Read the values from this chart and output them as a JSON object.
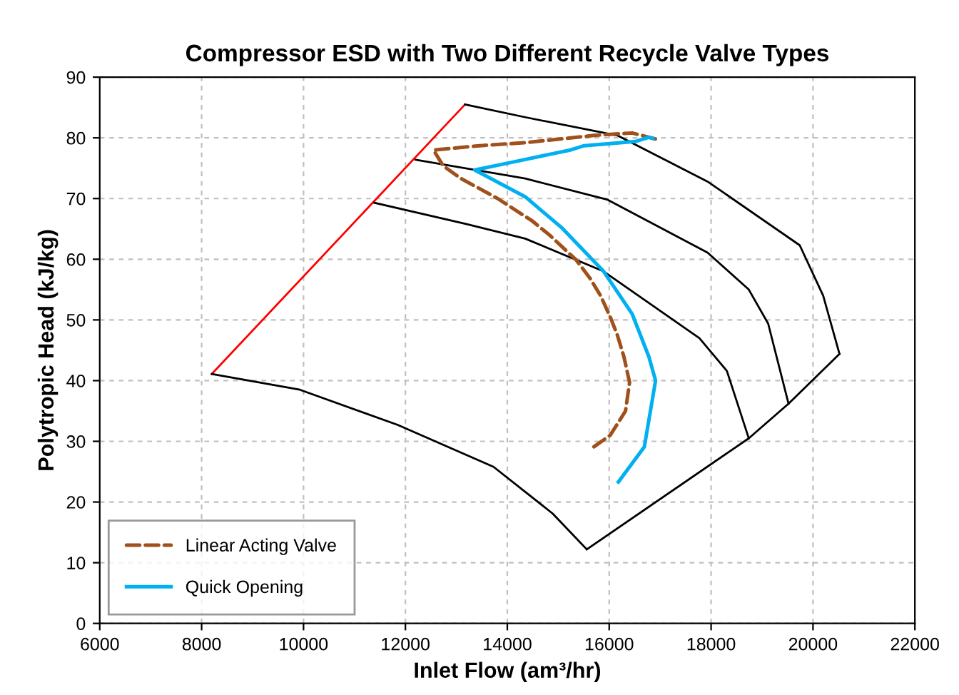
{
  "chart_data": {
    "type": "line",
    "title": "Compressor ESD with Two Different Recycle Valve Types",
    "xlabel": "Inlet Flow (am³/hr)",
    "ylabel": "Polytropic Head (kJ/kg)",
    "xlim": [
      6000,
      22000
    ],
    "ylim": [
      0,
      90
    ],
    "xticks": [
      6000,
      8000,
      10000,
      12000,
      14000,
      16000,
      18000,
      20000,
      22000
    ],
    "yticks": [
      0,
      10,
      20,
      30,
      40,
      50,
      60,
      70,
      80,
      90
    ],
    "grid": true,
    "legend": "bottom left",
    "marker": "none",
    "series": [
      {
        "color": "#ff0000",
        "line_style": "solid",
        "x": [
          8200,
          13170
        ],
        "values": [
          41.1,
          85.5
        ]
      },
      {
        "color": "#000000",
        "line_style": "solid",
        "x": [
          8200,
          9930,
          11850,
          13730,
          14890,
          15560
        ],
        "values": [
          41.1,
          38.5,
          32.7,
          25.8,
          18.1,
          12.2
        ]
      },
      {
        "color": "#000000",
        "line_style": "solid",
        "x": [
          15560,
          18740,
          19520,
          20520
        ],
        "values": [
          12.2,
          30.5,
          36.2,
          44.4
        ]
      },
      {
        "color": "#000000",
        "line_style": "solid",
        "x": [
          11390,
          13190,
          14350,
          15890,
          17770,
          18310,
          18740
        ],
        "values": [
          69.3,
          65.8,
          63.4,
          58.0,
          47.0,
          41.6,
          30.5
        ]
      },
      {
        "color": "#000000",
        "line_style": "solid",
        "x": [
          12200,
          14350,
          15970,
          17930,
          18740,
          19120,
          19520
        ],
        "values": [
          76.4,
          73.3,
          69.8,
          61.1,
          55.0,
          49.4,
          36.2
        ]
      },
      {
        "color": "#000000",
        "line_style": "solid",
        "x": [
          13170,
          14350,
          16160,
          17930,
          19740,
          20200,
          20520
        ],
        "values": [
          85.5,
          83.4,
          80.4,
          72.8,
          62.3,
          54.0,
          44.4
        ]
      },
      {
        "name": "Linear Acting Valve",
        "color": "#a0501a",
        "line_style": "dashed",
        "x": [
          15700,
          16020,
          16320,
          16400,
          16290,
          16160,
          16020,
          15830,
          15620,
          15350,
          14840,
          14490,
          13810,
          13090,
          12740,
          12550,
          13460,
          14350,
          15700,
          16450,
          16960
        ],
        "values": [
          29.1,
          31.0,
          35.0,
          39.7,
          43.9,
          47.5,
          50.5,
          54.0,
          56.9,
          59.9,
          63.9,
          66.3,
          70.0,
          73.3,
          75.4,
          78.0,
          78.7,
          79.2,
          80.4,
          80.8,
          79.7
        ]
      },
      {
        "name": "Quick Opening",
        "color": "#00b0f0",
        "line_style": "solid",
        "x": [
          16180,
          16690,
          16910,
          16780,
          16450,
          15890,
          15080,
          14350,
          13360,
          14160,
          15240,
          15510,
          16510,
          16780,
          16860
        ],
        "values": [
          23.3,
          29.1,
          40.0,
          43.9,
          51.0,
          58.0,
          65.1,
          70.3,
          74.7,
          76.1,
          78.0,
          78.7,
          79.4,
          80.1,
          79.9
        ]
      }
    ]
  }
}
